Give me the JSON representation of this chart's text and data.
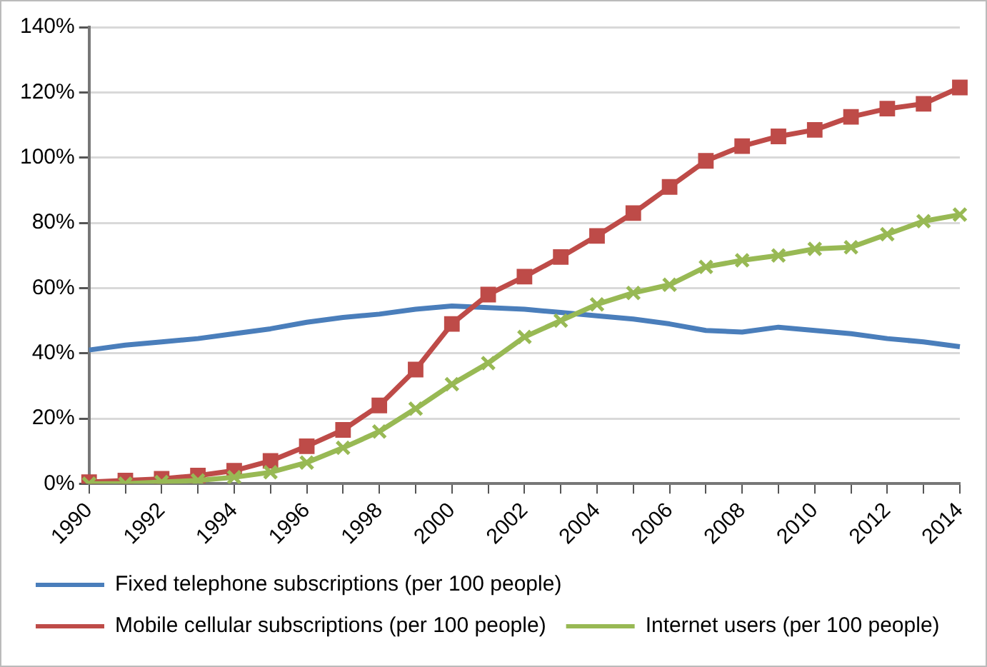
{
  "chart_data": {
    "type": "line",
    "categories": [
      "1990",
      null,
      "1992",
      null,
      "1994",
      null,
      "1996",
      null,
      "1998",
      null,
      "2000",
      null,
      "2002",
      null,
      "2004",
      null,
      "2006",
      null,
      "2008",
      null,
      "2010",
      null,
      "2012",
      null,
      "2014"
    ],
    "series": [
      {
        "name": "Fixed telephone subscriptions (per 100 people)",
        "color": "#4a7ebb",
        "marker": "none",
        "values": [
          41,
          42.5,
          43.5,
          44.5,
          46,
          47.5,
          49.5,
          51,
          52,
          53.5,
          54.5,
          54,
          53.5,
          52.5,
          51.5,
          50.5,
          49,
          47,
          46.5,
          48,
          47,
          46,
          44.5,
          43.5,
          42
        ]
      },
      {
        "name": "Mobile cellular subscriptions (per 100 people)",
        "color": "#be4b48",
        "marker": "square",
        "values": [
          0.5,
          1,
          1.5,
          2.5,
          4,
          7,
          11.5,
          16.5,
          24,
          35,
          49,
          58,
          63.5,
          69.5,
          76,
          83,
          91,
          99,
          103.5,
          106.5,
          108.5,
          112.5,
          115,
          116.5,
          121.5
        ]
      },
      {
        "name": "Internet users (per 100 people)",
        "color": "#98b954",
        "marker": "cross",
        "values": [
          0,
          0,
          0.5,
          1,
          2,
          3.5,
          6.5,
          11,
          16,
          23,
          30.5,
          37,
          45,
          50,
          55,
          58.5,
          61,
          66.5,
          68.5,
          70,
          72,
          72.5,
          76.5,
          80.5,
          82.5
        ]
      }
    ],
    "ylim": [
      0,
      140
    ],
    "yticks": [
      {
        "value": 0,
        "label": "0%"
      },
      {
        "value": 20,
        "label": "20%"
      },
      {
        "value": 40,
        "label": "40%"
      },
      {
        "value": 60,
        "label": "60%"
      },
      {
        "value": 80,
        "label": "80%"
      },
      {
        "value": 100,
        "label": "100%"
      },
      {
        "value": 120,
        "label": "120%"
      },
      {
        "value": 140,
        "label": "140%"
      }
    ],
    "grid": "y",
    "legend": "bottom",
    "line_style": "solid"
  }
}
